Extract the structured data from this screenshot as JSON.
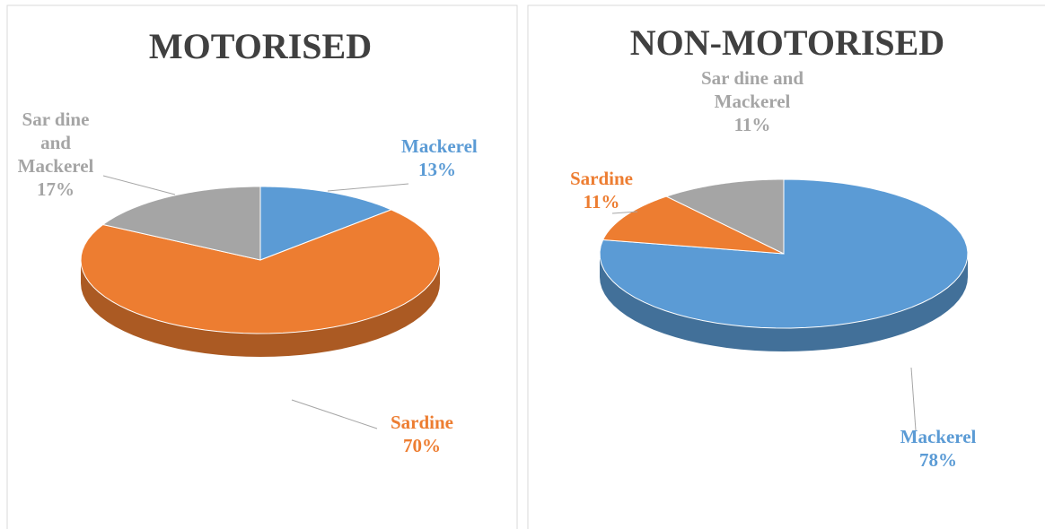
{
  "chart_data": [
    {
      "type": "pie3d",
      "title": "MOTORISED",
      "categories": [
        "Mackerel",
        "Sardine",
        "Sar dine and Mackerel"
      ],
      "values": [
        13,
        70,
        17
      ],
      "value_labels": [
        "13%",
        "70%",
        "17%"
      ],
      "colors": [
        "#5b9bd5",
        "#ed7d31",
        "#a5a5a5"
      ]
    },
    {
      "type": "pie3d",
      "title": "NON-MOTORISED",
      "categories": [
        "Mackerel",
        "Sardine",
        "Sar dine and Mackerel"
      ],
      "values": [
        78,
        11,
        11
      ],
      "value_labels": [
        "78%",
        "11%",
        "11%"
      ],
      "colors": [
        "#5b9bd5",
        "#ed7d31",
        "#a5a5a5"
      ]
    }
  ]
}
